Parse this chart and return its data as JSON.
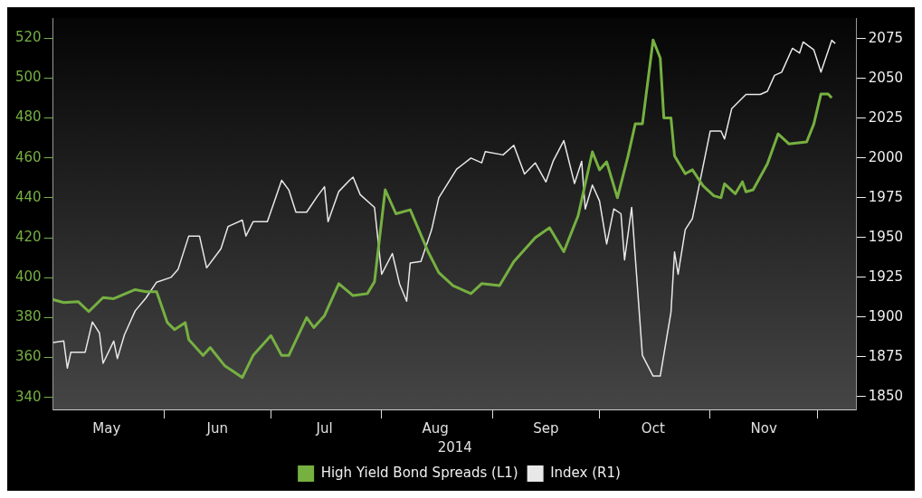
{
  "chart_data": {
    "type": "line",
    "xlabel": "2014",
    "legend": "bottom",
    "marker": "none",
    "line_style": "solid",
    "xlim": [
      "2014-05-01",
      "2014-12-12"
    ],
    "xticks": [
      {
        "value": "2014-05-16",
        "label": "May"
      },
      {
        "value": "2014-06-01",
        "label": null
      },
      {
        "value": "2014-06-16",
        "label": "Jun"
      },
      {
        "value": "2014-07-01",
        "label": null
      },
      {
        "value": "2014-07-16",
        "label": "Jul"
      },
      {
        "value": "2014-08-01",
        "label": null
      },
      {
        "value": "2014-08-16",
        "label": "Aug"
      },
      {
        "value": "2014-09-01",
        "label": null
      },
      {
        "value": "2014-09-16",
        "label": "Sep"
      },
      {
        "value": "2014-10-01",
        "label": null
      },
      {
        "value": "2014-10-16",
        "label": "Oct"
      },
      {
        "value": "2014-11-01",
        "label": null
      },
      {
        "value": "2014-11-16",
        "label": "Nov"
      },
      {
        "value": "2014-12-01",
        "label": null
      }
    ],
    "ylim": [
      334,
      530
    ],
    "yticks": [
      340,
      360,
      380,
      400,
      420,
      440,
      460,
      480,
      500,
      520
    ],
    "y2lim": [
      1842,
      2088
    ],
    "y2ticks": [
      1850,
      1875,
      1900,
      1925,
      1950,
      1975,
      2000,
      2025,
      2050,
      2075
    ],
    "series": [
      {
        "name": "High Yield Bond Spreads (L1)",
        "color": "#76b041",
        "x": [
          "2014-05-01",
          "2014-05-04",
          "2014-05-08",
          "2014-05-11",
          "2014-05-15",
          "2014-05-18",
          "2014-05-24",
          "2014-05-27",
          "2014-05-30",
          "2014-06-02",
          "2014-06-04",
          "2014-06-07",
          "2014-06-08",
          "2014-06-12",
          "2014-06-14",
          "2014-06-18",
          "2014-06-23",
          "2014-06-26",
          "2014-07-01",
          "2014-07-04",
          "2014-07-06",
          "2014-07-11",
          "2014-07-13",
          "2014-07-16",
          "2014-07-20",
          "2014-07-24",
          "2014-07-28",
          "2014-07-30",
          "2014-08-02",
          "2014-08-05",
          "2014-08-09",
          "2014-08-14",
          "2014-08-17",
          "2014-08-21",
          "2014-08-26",
          "2014-08-29",
          "2014-09-03",
          "2014-09-07",
          "2014-09-13",
          "2014-09-17",
          "2014-09-21",
          "2014-09-25",
          "2014-09-29",
          "2014-10-01",
          "2014-10-03",
          "2014-10-06",
          "2014-10-09",
          "2014-10-11",
          "2014-10-13",
          "2014-10-16",
          "2014-10-18",
          "2014-10-19",
          "2014-10-21",
          "2014-10-22",
          "2014-10-25",
          "2014-10-27",
          "2014-10-30",
          "2014-11-02",
          "2014-11-04",
          "2014-11-05",
          "2014-11-08",
          "2014-11-10",
          "2014-11-11",
          "2014-11-13",
          "2014-11-17",
          "2014-11-20",
          "2014-11-23",
          "2014-11-28",
          "2014-11-30",
          "2014-12-02",
          "2014-12-04",
          "2014-12-05"
        ],
        "values": [
          389,
          387.5,
          388,
          383,
          390,
          389.5,
          394,
          393,
          393,
          377.5,
          374,
          377.5,
          369,
          361,
          365,
          356,
          350,
          361,
          371,
          361,
          361,
          380,
          375,
          381,
          397,
          391,
          392,
          398,
          444,
          432,
          434,
          413,
          402.5,
          396,
          392,
          397,
          396,
          408,
          420,
          425,
          413,
          431,
          463,
          454,
          458,
          440,
          461,
          477,
          477,
          519,
          510,
          480,
          480,
          461,
          452,
          454,
          446,
          441,
          440,
          447,
          442,
          448,
          443,
          444,
          457,
          472,
          467,
          468,
          477,
          492,
          492,
          490
        ]
      },
      {
        "name": "Index (R1)",
        "color": "#e8e8e8",
        "axis": "y2",
        "x": [
          "2014-05-01",
          "2014-05-04",
          "2014-05-05",
          "2014-05-06",
          "2014-05-10",
          "2014-05-12",
          "2014-05-14",
          "2014-05-15",
          "2014-05-18",
          "2014-05-19",
          "2014-05-21",
          "2014-05-22",
          "2014-05-24",
          "2014-05-27",
          "2014-05-30",
          "2014-06-03",
          "2014-06-05",
          "2014-06-08",
          "2014-06-11",
          "2014-06-13",
          "2014-06-17",
          "2014-06-19",
          "2014-06-23",
          "2014-06-24",
          "2014-06-26",
          "2014-06-30",
          "2014-07-02",
          "2014-07-04",
          "2014-07-06",
          "2014-07-08",
          "2014-07-11",
          "2014-07-14",
          "2014-07-16",
          "2014-07-17",
          "2014-07-20",
          "2014-07-23",
          "2014-07-24",
          "2014-07-26",
          "2014-07-30",
          "2014-08-01",
          "2014-08-04",
          "2014-08-06",
          "2014-08-08",
          "2014-08-09",
          "2014-08-12",
          "2014-08-15",
          "2014-08-17",
          "2014-08-22",
          "2014-08-26",
          "2014-08-29",
          "2014-08-30",
          "2014-09-04",
          "2014-09-07",
          "2014-09-10",
          "2014-09-13",
          "2014-09-16",
          "2014-09-18",
          "2014-09-21",
          "2014-09-24",
          "2014-09-26",
          "2014-09-27",
          "2014-09-29",
          "2014-10-01",
          "2014-10-03",
          "2014-10-05",
          "2014-10-07",
          "2014-10-08",
          "2014-10-10",
          "2014-10-13",
          "2014-10-16",
          "2014-10-18",
          "2014-10-21",
          "2014-10-22",
          "2014-10-23",
          "2014-10-25",
          "2014-10-27",
          "2014-10-29",
          "2014-11-01",
          "2014-11-04",
          "2014-11-05",
          "2014-11-07",
          "2014-11-11",
          "2014-11-15",
          "2014-11-17",
          "2014-11-19",
          "2014-11-21",
          "2014-11-24",
          "2014-11-26",
          "2014-11-27",
          "2014-11-30",
          "2014-12-02",
          "2014-12-05",
          "2014-12-06"
        ],
        "values": [
          1884,
          1885,
          1868,
          1878,
          1878,
          1897,
          1890,
          1871,
          1885,
          1874,
          1889,
          1894,
          1904,
          1912,
          1922,
          1925,
          1930,
          1951,
          1951,
          1931,
          1943,
          1957,
          1961,
          1951,
          1960,
          1960,
          1973,
          1986,
          1980,
          1966,
          1966,
          1976,
          1982,
          1960,
          1979,
          1986,
          1988,
          1977,
          1969,
          1927,
          1940,
          1921,
          1910,
          1934,
          1935,
          1955,
          1975,
          1993,
          2000,
          1997,
          2004,
          2002,
          2008,
          1990,
          1997,
          1985,
          1998,
          2011,
          1984,
          1998,
          1968,
          1983,
          1973,
          1946,
          1968,
          1965,
          1936,
          1969,
          1876,
          1863,
          1863,
          1903,
          1941,
          1927,
          1955,
          1962,
          1984,
          2017,
          2017,
          2012,
          2031,
          2040,
          2040,
          2042,
          2052,
          2054,
          2069,
          2066,
          2073,
          2068,
          2054,
          2074,
          2072
        ]
      }
    ]
  }
}
